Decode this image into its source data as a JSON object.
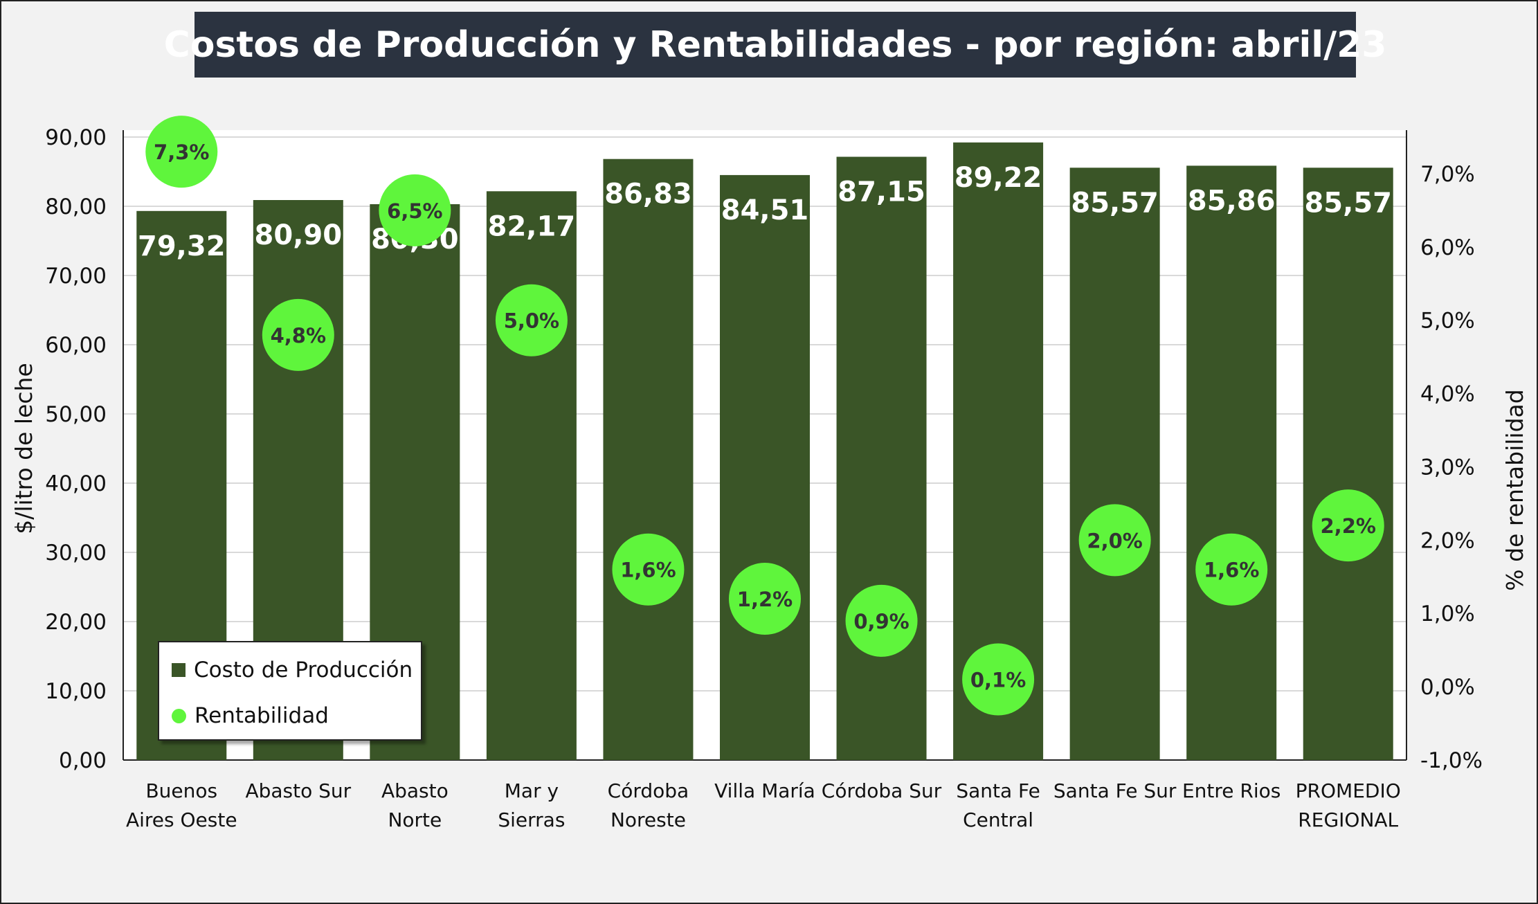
{
  "chart_data": {
    "type": "bar",
    "title": "Costos de Producción y Rentabilidades - por región: abril/23",
    "categories": [
      [
        "Buenos",
        "Aires Oeste"
      ],
      [
        "Abasto Sur"
      ],
      [
        "Abasto",
        "Norte"
      ],
      [
        "Mar y",
        "Sierras"
      ],
      [
        "Córdoba",
        "Noreste"
      ],
      [
        "Villa María"
      ],
      [
        "Córdoba Sur"
      ],
      [
        "Santa Fe",
        "Central"
      ],
      [
        "Santa Fe Sur"
      ],
      [
        "Entre Rios"
      ],
      [
        "PROMEDIO",
        "REGIONAL"
      ]
    ],
    "series": [
      {
        "name": "Costo de Producción",
        "type": "bar",
        "axis": "left",
        "values": [
          79.32,
          80.9,
          80.3,
          82.17,
          86.83,
          84.51,
          87.15,
          89.22,
          85.57,
          85.86,
          85.57
        ],
        "labels": [
          "79,32",
          "80,90",
          "80,30",
          "82,17",
          "86,83",
          "84,51",
          "87,15",
          "89,22",
          "85,57",
          "85,86",
          "85,57"
        ],
        "color": "#3a5527"
      },
      {
        "name": "Rentabilidad",
        "type": "scatter",
        "axis": "right",
        "values": [
          7.3,
          4.8,
          6.5,
          5.0,
          1.6,
          1.2,
          0.9,
          0.1,
          2.0,
          1.6,
          2.2
        ],
        "labels": [
          "7,3%",
          "4,8%",
          "6,5%",
          "5,0%",
          "1,6%",
          "1,2%",
          "0,9%",
          "0,1%",
          "2,0%",
          "1,6%",
          "2,2%"
        ],
        "color": "#5ff53c"
      }
    ],
    "ylabel": "$/litro de leche",
    "ylim": [
      0,
      90
    ],
    "yticks": [
      "0,00",
      "10,00",
      "20,00",
      "30,00",
      "40,00",
      "50,00",
      "60,00",
      "70,00",
      "80,00",
      "90,00"
    ],
    "y2label": "% de rentabilidad",
    "y2lim": [
      -1.0,
      7.5
    ],
    "y2ticks": [
      "-1,0%",
      "0,0%",
      "1,0%",
      "2,0%",
      "3,0%",
      "4,0%",
      "5,0%",
      "6,0%",
      "7,0%"
    ],
    "grid": true,
    "legend_position": "bottom-left"
  }
}
